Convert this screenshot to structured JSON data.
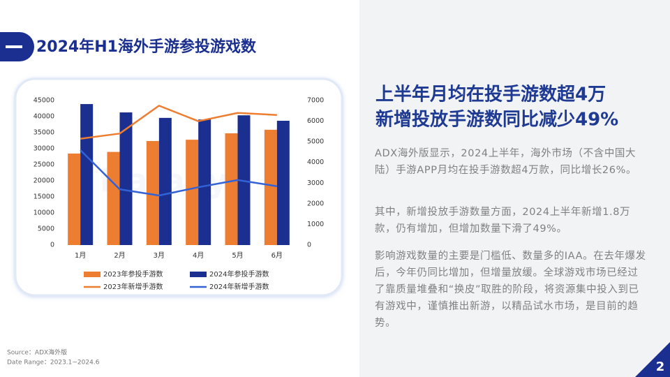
{
  "header": {
    "title": "2024年H1海外手游参投游戏数"
  },
  "chart_data": {
    "type": "bar",
    "watermark": "DataEye",
    "categories": [
      "1月",
      "2月",
      "3月",
      "4月",
      "5月",
      "6月"
    ],
    "series": [
      {
        "name": "2023年参投手游数",
        "type": "bar",
        "color": "#ed7d31",
        "values": [
          28500,
          29000,
          32400,
          32800,
          34800,
          35900
        ]
      },
      {
        "name": "2024年参投手游数",
        "type": "bar",
        "color": "#1a2f8f",
        "values": [
          43900,
          41300,
          39600,
          39100,
          40400,
          38700
        ]
      },
      {
        "name": "2023年新增手游数",
        "type": "line",
        "axis": "y2",
        "color": "#ed7d31",
        "values": [
          5150,
          5400,
          6750,
          6000,
          6400,
          6300
        ]
      },
      {
        "name": "2024年新增手游数",
        "type": "line",
        "axis": "y2",
        "color": "#3362d6",
        "values": [
          4600,
          2700,
          2400,
          2800,
          3150,
          2850
        ]
      }
    ],
    "ylim": [
      0,
      45000
    ],
    "yticks": [
      0,
      5000,
      10000,
      15000,
      20000,
      25000,
      30000,
      35000,
      40000,
      45000
    ],
    "y2lim": [
      0,
      7000
    ],
    "y2ticks": [
      0,
      1000,
      2000,
      3000,
      4000,
      5000,
      6000,
      7000
    ],
    "grid": false,
    "legend": "bottom"
  },
  "panel": {
    "headline": [
      "上半年月均在投手游数超4万",
      "新增投放手游数同比减少49%"
    ],
    "paragraphs": [
      "ADX海外版显示，2024上半年，海外市场（不含中国大陆）手游APP月均在投手游数超4万款，同比增长26%。",
      "其中，新增投放手游数量方面，2024上半年新增1.8万款，仍有增加，但增加数量下滑了49%。",
      "影响游戏数量的主要是门槛低、数量多的IAA。在去年爆发后，今年仍同比增加，但增量放缓。全球游戏市场已经过了靠质量堆叠和“换皮”取胜的阶段，将资源集中投入到已有游戏中，谨慎推出新游，以精品试水市场，是目前的趋势。"
    ]
  },
  "footer": {
    "source": "Source：ADX海外版",
    "date_range": "Date Range：2023.1~2024.6",
    "page": "2"
  }
}
